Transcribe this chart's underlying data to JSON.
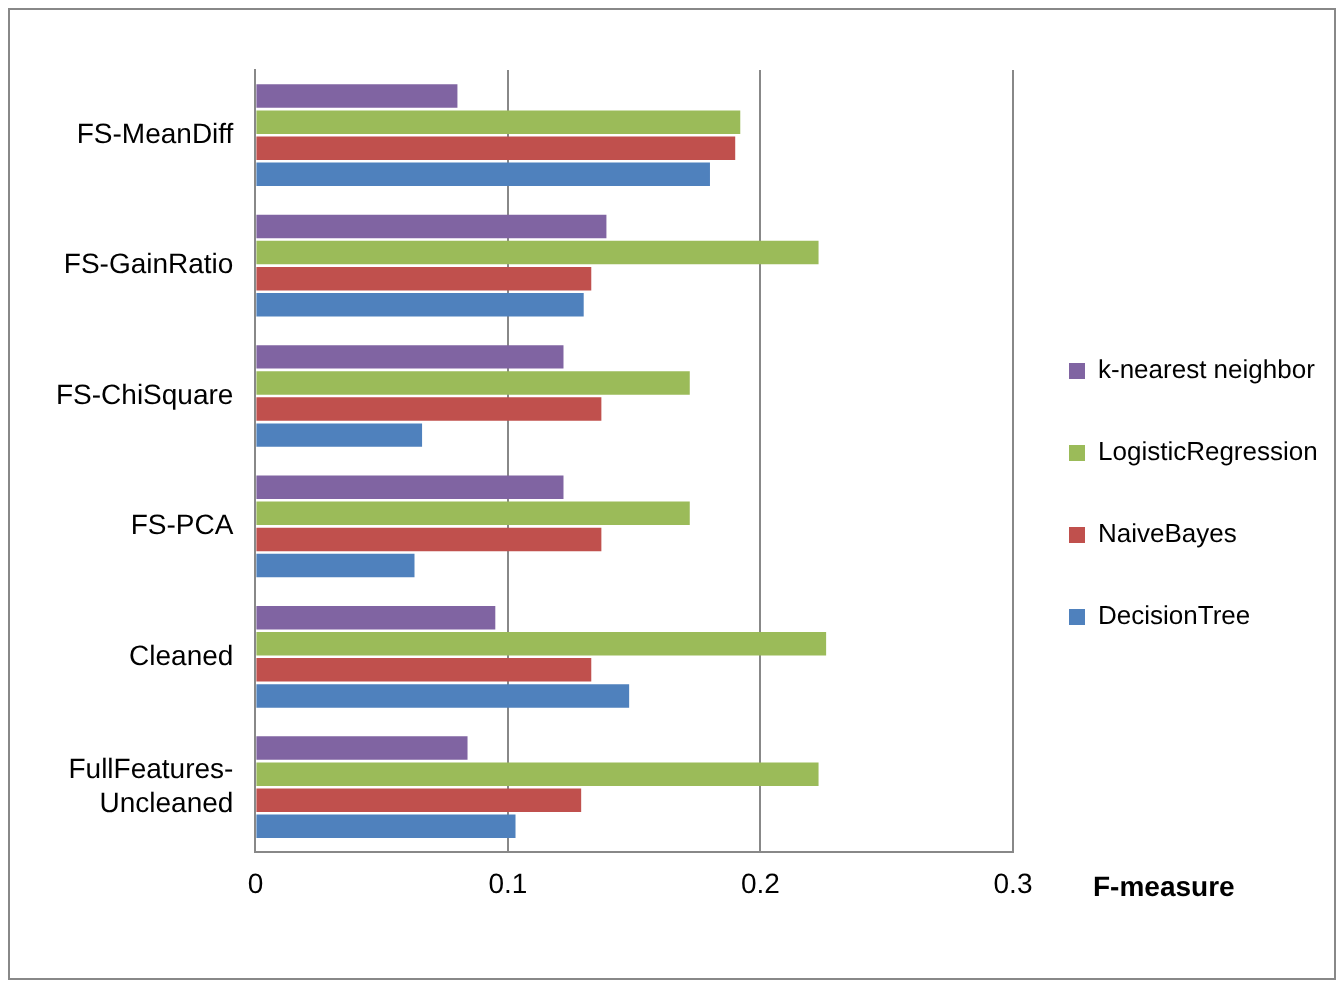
{
  "chart_data": {
    "type": "bar",
    "orientation": "horizontal",
    "xlabel": "F-measure",
    "categories": [
      "FS-MeanDiff",
      "FS-GainRatio",
      "FS-ChiSquare",
      "FS-PCA",
      "Cleaned",
      "FullFeatures-Uncleaned"
    ],
    "series": [
      {
        "name": "k-nearest neighbor",
        "color": "#8064a2",
        "values": [
          0.08,
          0.139,
          0.122,
          0.122,
          0.095,
          0.084
        ]
      },
      {
        "name": "LogisticRegression",
        "color": "#9bbb59",
        "values": [
          0.192,
          0.223,
          0.172,
          0.172,
          0.226,
          0.223
        ]
      },
      {
        "name": "NaiveBayes",
        "color": "#c0504d",
        "values": [
          0.19,
          0.133,
          0.137,
          0.137,
          0.133,
          0.129
        ]
      },
      {
        "name": "DecisionTree",
        "color": "#4f81bd",
        "values": [
          0.18,
          0.13,
          0.066,
          0.063,
          0.148,
          0.103
        ]
      }
    ],
    "xlim": [
      0,
      0.3
    ],
    "xticks": [
      0,
      0.1,
      0.2,
      0.3
    ],
    "grid": "x",
    "legend": "right"
  }
}
